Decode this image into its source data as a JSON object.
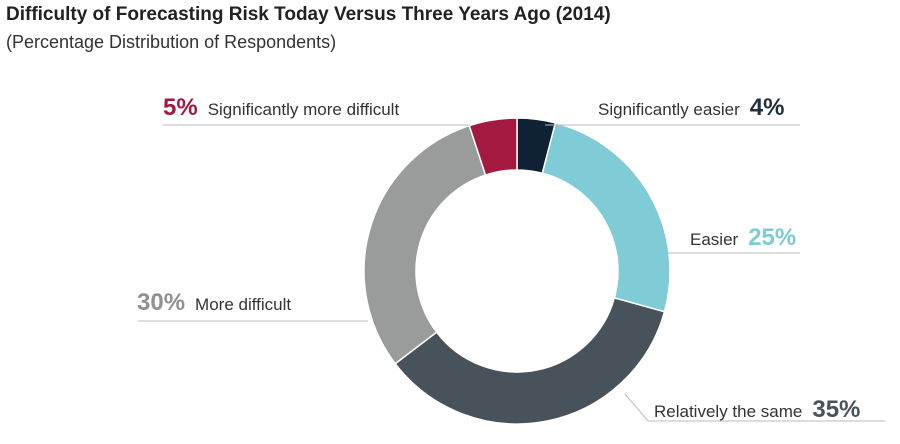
{
  "title": "Difficulty of Forecasting Risk Today Versus Three Years Ago (2014)",
  "subtitle": "(Percentage Distribution of Respondents)",
  "chart_data": {
    "type": "pie",
    "variant": "donut",
    "title": "Difficulty of Forecasting Risk Today Versus Three Years Ago (2014)",
    "subtitle": "(Percentage Distribution of Respondents)",
    "slices": [
      {
        "label": "Significantly easier",
        "value": 4,
        "display": "4%",
        "color": "#0f2235"
      },
      {
        "label": "Easier",
        "value": 25,
        "display": "25%",
        "color": "#7fcbd6"
      },
      {
        "label": "Relatively the same",
        "value": 35,
        "display": "35%",
        "color": "#47525a"
      },
      {
        "label": "More difficult",
        "value": 30,
        "display": "30%",
        "color": "#9a9c9b"
      },
      {
        "label": "Significantly more difficult",
        "value": 5,
        "display": "5%",
        "color": "#a3193f"
      }
    ],
    "label_colors": {
      "Significantly easier": "#1f2f3d",
      "Easier": "#7fcbd6",
      "Relatively the same": "#47525a",
      "More difficult": "#8f9192",
      "Significantly more difficult": "#a3193f"
    }
  }
}
